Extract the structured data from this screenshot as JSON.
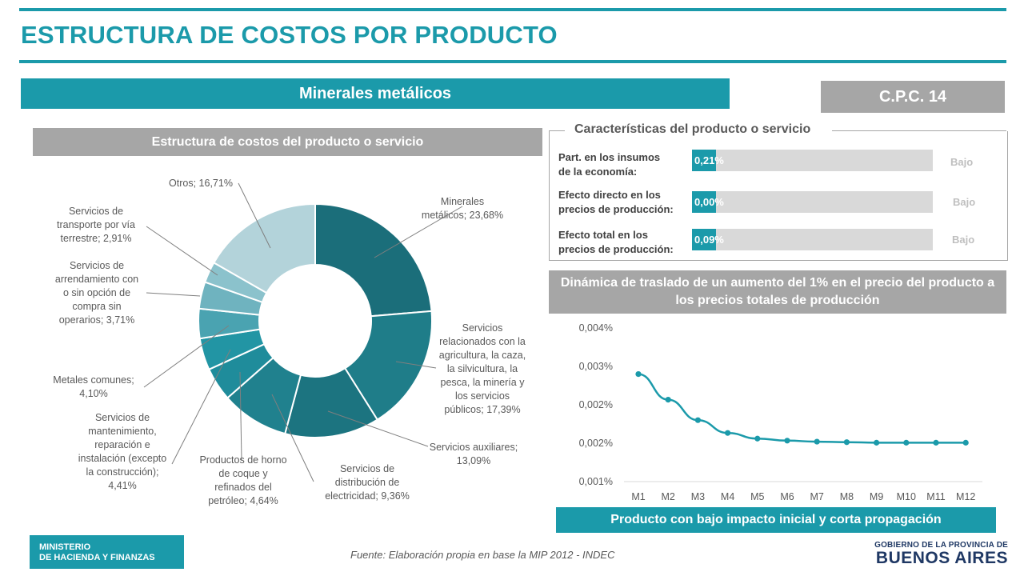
{
  "page_title": "ESTRUCTURA DE COSTOS POR PRODUCTO",
  "product_name": "Minerales metálicos",
  "cpc_code": "C.P.C. 14",
  "donut_section_title": "Estructura  de costos del producto  o servicio",
  "characteristics": {
    "title": "Características del producto o servicio",
    "items": [
      {
        "label_lines": [
          "Part. en los insumos",
          "de la economía:"
        ],
        "value": 0.21,
        "value_text": "0,21%",
        "level": "Bajo"
      },
      {
        "label_lines": [
          "Efecto directo en los",
          "precios de producción:"
        ],
        "value": 0.0,
        "value_text": "0,00%",
        "level": "Bajo"
      },
      {
        "label_lines": [
          "Efecto total en los",
          "precios de producción:"
        ],
        "value": 0.09,
        "value_text": "0,09%",
        "level": "Bajo"
      }
    ]
  },
  "line_section_title_lines": [
    "Dinámica de traslado de un aumento del 1% en el precio del producto a",
    "los precios totales de producción"
  ],
  "conclusion": "Producto con bajo impacto inicial y corta propagación",
  "source": "Fuente: Elaboración propia en base la MIP 2012 - INDEC",
  "ministry_lines": [
    "MINISTERIO",
    "DE HACIENDA Y FINANZAS"
  ],
  "gob_small": "GOBIERNO DE LA PROVINCIA DE",
  "gob_big": "BUENOS AIRES",
  "colors": {
    "accent": "#1b9aaa",
    "grey": "#a6a6a6"
  },
  "chart_data": [
    {
      "type": "pie",
      "title": "Estructura  de costos del producto  o servicio",
      "slices": [
        {
          "label_lines": [
            "Minerales",
            "metálicos; 23,68%"
          ],
          "value": 23.68,
          "color": "#1b6e7a"
        },
        {
          "label_lines": [
            "Servicios",
            "relacionados con la",
            "agricultura, la caza,",
            "la silvicultura, la",
            "pesca, la minería y",
            "los servicios",
            "públicos; 17,39%"
          ],
          "value": 17.39,
          "color": "#1f7d89"
        },
        {
          "label_lines": [
            "Servicios auxiliares;",
            "13,09%"
          ],
          "value": 13.09,
          "color": "#1c7480"
        },
        {
          "label_lines": [
            "Servicios de",
            "distribución de",
            "electricidad; 9,36%"
          ],
          "value": 9.36,
          "color": "#20818e"
        },
        {
          "label_lines": [
            "Productos de horno",
            "de coque y",
            "refinados del",
            "petróleo; 4,64%"
          ],
          "value": 4.64,
          "color": "#1f8c9b"
        },
        {
          "label_lines": [
            "Servicios de",
            "mantenimiento,",
            "reparación e",
            "instalación (excepto",
            "la construcción);",
            "4,41%"
          ],
          "value": 4.41,
          "color": "#2295a4"
        },
        {
          "label_lines": [
            "Metales comunes;",
            "4,10%"
          ],
          "value": 4.1,
          "color": "#4aa3b1"
        },
        {
          "label_lines": [
            "Servicios de",
            "arrendamiento con",
            "o sin opción de",
            "compra sin",
            "operarios; 3,71%"
          ],
          "value": 3.71,
          "color": "#6fb3bf"
        },
        {
          "label_lines": [
            "Servicios de",
            "transporte por vía",
            "terrestre; 2,91%"
          ],
          "value": 2.91,
          "color": "#8bc2cc"
        },
        {
          "label_lines": [
            "Otros; 16,71%"
          ],
          "value": 16.71,
          "color": "#b3d3da"
        }
      ]
    },
    {
      "type": "line",
      "title": "Dinámica de traslado de un aumento del 1% en el precio del producto a los precios totales de producción",
      "categories": [
        "M1",
        "M2",
        "M3",
        "M4",
        "M5",
        "M6",
        "M7",
        "M8",
        "M9",
        "M10",
        "M11",
        "M12"
      ],
      "series": [
        {
          "values": [
            0.0031,
            0.0026,
            0.0022,
            0.00195,
            0.00184,
            0.0018,
            0.00178,
            0.00177,
            0.00176,
            0.00176,
            0.00176,
            0.00176
          ]
        }
      ],
      "yticks": [
        "0,004%",
        "0,003%",
        "0,002%",
        "0,002%",
        "0,001%"
      ],
      "ylim": [
        0.001,
        0.004
      ],
      "grid": false,
      "color": "#1b9aaa"
    }
  ]
}
